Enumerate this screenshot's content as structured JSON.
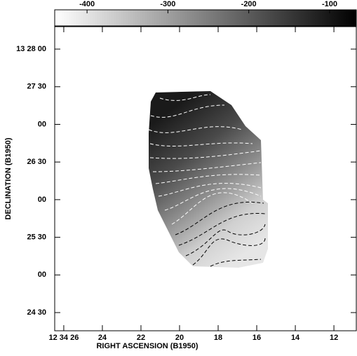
{
  "chart_data": {
    "type": "image",
    "xlabel": "RIGHT ASCENSION (B1950)",
    "ylabel": "DECLINATION (B1950)",
    "xlim": [
      45266.47,
      45250.84
    ],
    "ylim": [
      48255.5,
      48497.9
    ],
    "xticks": [
      {
        "value": 45266,
        "label": "12 34 26"
      },
      {
        "value": 45264,
        "label": "24"
      },
      {
        "value": 45262,
        "label": "22"
      },
      {
        "value": 45260,
        "label": "20"
      },
      {
        "value": 45258,
        "label": "18"
      },
      {
        "value": 45256,
        "label": "16"
      },
      {
        "value": 45254,
        "label": "14"
      },
      {
        "value": 45252,
        "label": "12"
      }
    ],
    "yticks": [
      {
        "value": 48480,
        "label": "13 28 00"
      },
      {
        "value": 48450,
        "label": "27 30"
      },
      {
        "value": 48420,
        "label": "00"
      },
      {
        "value": 48390,
        "label": "26 30"
      },
      {
        "value": 48360,
        "label": "00"
      },
      {
        "value": 48330,
        "label": "25 30"
      },
      {
        "value": 48300,
        "label": "00"
      },
      {
        "value": 48270,
        "label": "24 30"
      }
    ],
    "colorbar": {
      "lim": [
        -440,
        -67
      ],
      "ticks": [
        -400,
        -300,
        -200,
        -100
      ],
      "colors": [
        "#ffffff",
        "#000000"
      ]
    }
  }
}
